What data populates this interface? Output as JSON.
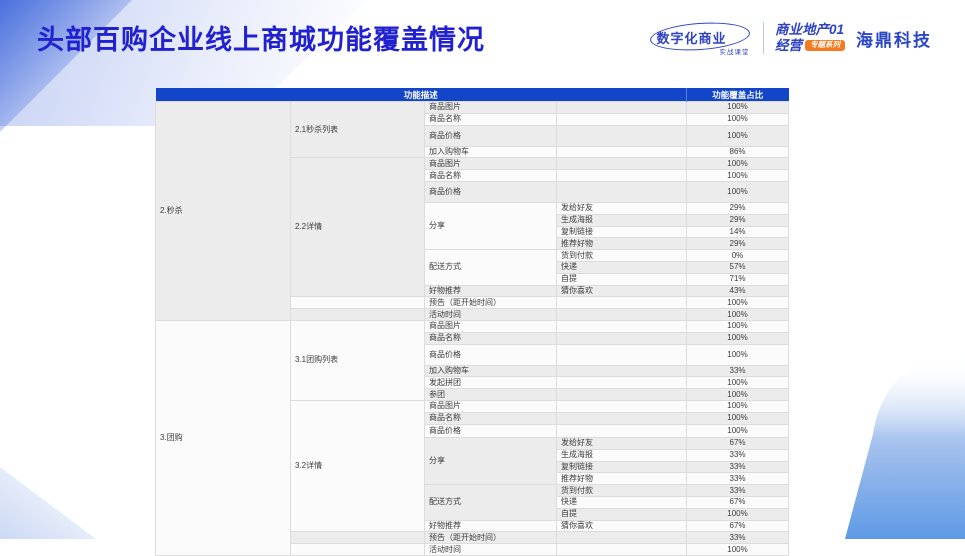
{
  "title": "头部百购企业线上商城功能覆盖情况",
  "brand": {
    "logo1_main": "数字化商业",
    "logo1_sub": "实战课堂",
    "logo2_line1": "商业地产01",
    "logo2_word": "经营",
    "logo2_badge": "专题系列",
    "logo3": "海鼎科技"
  },
  "colors": {
    "title_blue": "#2121cf",
    "header_blue": "#1345c8",
    "highlight_yellow": "#ffd966",
    "badge_orange": "#f5791f",
    "logo_blue": "#2e42c4"
  },
  "chart_data": {
    "type": "table",
    "title": "头部百购企业线上商城功能覆盖情况",
    "header": {
      "desc": "功能描述",
      "pct": "功能覆盖占比"
    },
    "legend_note": "highlight=true means the cell is shaded yellow (#ffd966)",
    "rows": [
      {
        "cells": [
          {
            "text": "2.秒杀",
            "col": 1,
            "rowspan": 17
          },
          {
            "text": "2.1秒杀列表",
            "col": 2,
            "rowspan": 4
          },
          {
            "text": "商品图片",
            "col": 3
          },
          {
            "text": "",
            "col": 4
          },
          {
            "text": "100%",
            "col": 5,
            "highlight": true
          }
        ]
      },
      {
        "cells": [
          {
            "text": "商品名称",
            "col": 3
          },
          {
            "text": "",
            "col": 4
          },
          {
            "text": "100%",
            "col": 5,
            "highlight": true
          }
        ]
      },
      {
        "height": "tall",
        "cells": [
          {
            "text": "商品价格",
            "col": 3
          },
          {
            "text": "",
            "col": 4
          },
          {
            "text": "100%",
            "col": 5,
            "highlight": true
          }
        ]
      },
      {
        "cells": [
          {
            "text": "加入购物车",
            "col": 3
          },
          {
            "text": "",
            "col": 4
          },
          {
            "text": "86%",
            "col": 5,
            "highlight": true
          }
        ]
      },
      {
        "cells": [
          {
            "text": "2.2详情",
            "col": 2,
            "rowspan": 11
          },
          {
            "text": "商品图片",
            "col": 3
          },
          {
            "text": "",
            "col": 4
          },
          {
            "text": "100%",
            "col": 5,
            "highlight": true
          }
        ]
      },
      {
        "cells": [
          {
            "text": "商品名称",
            "col": 3
          },
          {
            "text": "",
            "col": 4
          },
          {
            "text": "100%",
            "col": 5,
            "highlight": true
          }
        ]
      },
      {
        "height": "tall",
        "cells": [
          {
            "text": "商品价格",
            "col": 3
          },
          {
            "text": "",
            "col": 4
          },
          {
            "text": "100%",
            "col": 5,
            "highlight": true
          }
        ]
      },
      {
        "cells": [
          {
            "text": "分享",
            "col": 3,
            "rowspan": 4
          },
          {
            "text": "发给好友",
            "col": 4
          },
          {
            "text": "29%",
            "col": 5
          }
        ]
      },
      {
        "cells": [
          {
            "text": "生成海报",
            "col": 4
          },
          {
            "text": "29%",
            "col": 5
          }
        ]
      },
      {
        "cells": [
          {
            "text": "复制链接",
            "col": 4
          },
          {
            "text": "14%",
            "col": 5
          }
        ]
      },
      {
        "cells": [
          {
            "text": "推荐好物",
            "col": 4
          },
          {
            "text": "29%",
            "col": 5
          }
        ]
      },
      {
        "cells": [
          {
            "text": "配送方式",
            "col": 3,
            "rowspan": 3
          },
          {
            "text": "货到付款",
            "col": 4
          },
          {
            "text": "0%",
            "col": 5
          }
        ]
      },
      {
        "cells": [
          {
            "text": "快递",
            "col": 4
          },
          {
            "text": "57%",
            "col": 5,
            "highlight": true
          }
        ]
      },
      {
        "cells": [
          {
            "text": "自提",
            "col": 4
          },
          {
            "text": "71%",
            "col": 5,
            "highlight": true
          }
        ]
      },
      {
        "cells": [
          {
            "text": "好物推荐",
            "col": 3
          },
          {
            "text": "猜你喜欢",
            "col": 4
          },
          {
            "text": "43%",
            "col": 5
          }
        ]
      },
      {
        "cells": [
          {
            "text": "",
            "col": 2
          },
          {
            "text": "预告（距开始时间）",
            "col": 3
          },
          {
            "text": "",
            "col": 4
          },
          {
            "text": "100%",
            "col": 5,
            "highlight": true
          }
        ]
      },
      {
        "cells": [
          {
            "text": "",
            "col": 2
          },
          {
            "text": "活动时间",
            "col": 3
          },
          {
            "text": "",
            "col": 4
          },
          {
            "text": "100%",
            "col": 5,
            "highlight": true
          }
        ]
      },
      {
        "cells": [
          {
            "text": "3.团购",
            "col": 1,
            "rowspan": 19
          },
          {
            "text": "3.1团购列表",
            "col": 2,
            "rowspan": 6
          },
          {
            "text": "商品图片",
            "col": 3
          },
          {
            "text": "",
            "col": 4
          },
          {
            "text": "100%",
            "col": 5,
            "highlight": true
          }
        ]
      },
      {
        "cells": [
          {
            "text": "商品名称",
            "col": 3
          },
          {
            "text": "",
            "col": 4
          },
          {
            "text": "100%",
            "col": 5,
            "highlight": true
          }
        ]
      },
      {
        "height": "tall",
        "cells": [
          {
            "text": "商品价格",
            "col": 3
          },
          {
            "text": "",
            "col": 4
          },
          {
            "text": "100%",
            "col": 5,
            "highlight": true
          }
        ]
      },
      {
        "cells": [
          {
            "text": "加入购物车",
            "col": 3
          },
          {
            "text": "",
            "col": 4
          },
          {
            "text": "33%",
            "col": 5
          }
        ]
      },
      {
        "cells": [
          {
            "text": "发起拼团",
            "col": 3
          },
          {
            "text": "",
            "col": 4
          },
          {
            "text": "100%",
            "col": 5,
            "highlight": true
          }
        ]
      },
      {
        "cells": [
          {
            "text": "参团",
            "col": 3
          },
          {
            "text": "",
            "col": 4
          },
          {
            "text": "100%",
            "col": 5,
            "highlight": true
          }
        ]
      },
      {
        "cells": [
          {
            "text": "3.2详情",
            "col": 2,
            "rowspan": 11
          },
          {
            "text": "商品图片",
            "col": 3
          },
          {
            "text": "",
            "col": 4
          },
          {
            "text": "100%",
            "col": 5,
            "highlight": true
          }
        ]
      },
      {
        "cells": [
          {
            "text": "商品名称",
            "col": 3
          },
          {
            "text": "",
            "col": 4
          },
          {
            "text": "100%",
            "col": 5,
            "highlight": true
          }
        ]
      },
      {
        "height": "med",
        "cells": [
          {
            "text": "商品价格",
            "col": 3
          },
          {
            "text": "",
            "col": 4
          },
          {
            "text": "100%",
            "col": 5,
            "highlight": true
          }
        ]
      },
      {
        "cells": [
          {
            "text": "分享",
            "col": 3,
            "rowspan": 4
          },
          {
            "text": "发给好友",
            "col": 4
          },
          {
            "text": "67%",
            "col": 5,
            "highlight": true
          }
        ]
      },
      {
        "cells": [
          {
            "text": "生成海报",
            "col": 4
          },
          {
            "text": "33%",
            "col": 5
          }
        ]
      },
      {
        "cells": [
          {
            "text": "复制链接",
            "col": 4
          },
          {
            "text": "33%",
            "col": 5
          }
        ]
      },
      {
        "cells": [
          {
            "text": "推荐好物",
            "col": 4
          },
          {
            "text": "33%",
            "col": 5
          }
        ]
      },
      {
        "cells": [
          {
            "text": "配送方式",
            "col": 3,
            "rowspan": 3
          },
          {
            "text": "货到付款",
            "col": 4
          },
          {
            "text": "33%",
            "col": 5
          }
        ]
      },
      {
        "cells": [
          {
            "text": "快递",
            "col": 4
          },
          {
            "text": "67%",
            "col": 5,
            "highlight": true
          }
        ]
      },
      {
        "cells": [
          {
            "text": "自提",
            "col": 4
          },
          {
            "text": "100%",
            "col": 5,
            "highlight": true
          }
        ]
      },
      {
        "cells": [
          {
            "text": "好物推荐",
            "col": 3
          },
          {
            "text": "猜你喜欢",
            "col": 4
          },
          {
            "text": "67%",
            "col": 5,
            "highlight": true
          }
        ]
      },
      {
        "cells": [
          {
            "text": "",
            "col": 2
          },
          {
            "text": "预告（距开始时间）",
            "col": 3
          },
          {
            "text": "",
            "col": 4
          },
          {
            "text": "33%",
            "col": 5
          }
        ]
      },
      {
        "cells": [
          {
            "text": "",
            "col": 2
          },
          {
            "text": "活动时间",
            "col": 3
          },
          {
            "text": "",
            "col": 4
          },
          {
            "text": "100%",
            "col": 5,
            "highlight": true
          }
        ]
      }
    ]
  }
}
